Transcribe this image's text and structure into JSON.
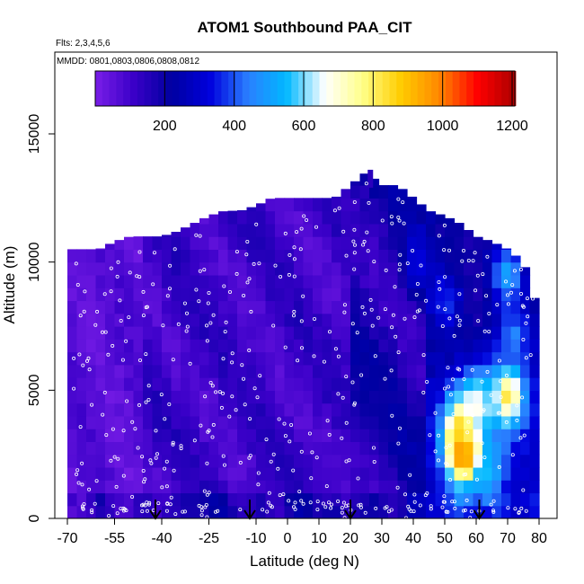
{
  "chart_data": {
    "type": "heatmap",
    "title": "ATOM1 Southbound PAA_CIT",
    "subtitle_flights": "Flts: 2,3,4,5,6",
    "subtitle_dates": "MMDD: 0801,0803,0806,0808,0812",
    "xlabel": "Latitude (deg N)",
    "ylabel": "Altitude (m)",
    "xlim": [
      -70,
      80
    ],
    "ylim": [
      0,
      17500
    ],
    "x_ticks": [
      -70,
      -55,
      -40,
      -25,
      -10,
      0,
      10,
      20,
      30,
      40,
      50,
      60,
      70,
      80
    ],
    "y_ticks": [
      0,
      5000,
      10000,
      15000
    ],
    "colorbar": {
      "range": [
        0,
        1210
      ],
      "ticks": [
        200,
        400,
        600,
        800,
        1000,
        1200
      ],
      "colors": [
        "#7a1ee8",
        "#3a00c8",
        "#0000a0",
        "#0000dd",
        "#2a7fff",
        "#00b8ff",
        "#ffffff",
        "#ffff88",
        "#ffcc00",
        "#ff8800",
        "#ff0000",
        "#aa0000"
      ]
    },
    "column_tops_m": [
      [
        -70,
        10500
      ],
      [
        -65,
        10500
      ],
      [
        -60,
        10500
      ],
      [
        -55,
        10800
      ],
      [
        -50,
        11000
      ],
      [
        -45,
        11000
      ],
      [
        -40,
        11000
      ],
      [
        -35,
        11200
      ],
      [
        -30,
        11500
      ],
      [
        -25,
        11800
      ],
      [
        -20,
        12000
      ],
      [
        -15,
        12000
      ],
      [
        -10,
        12200
      ],
      [
        -5,
        12500
      ],
      [
        0,
        12500
      ],
      [
        5,
        12500
      ],
      [
        10,
        12500
      ],
      [
        15,
        12500
      ],
      [
        20,
        13000
      ],
      [
        25,
        13500
      ],
      [
        30,
        13000
      ],
      [
        35,
        13000
      ],
      [
        40,
        12500
      ],
      [
        45,
        12000
      ],
      [
        50,
        11800
      ],
      [
        55,
        11500
      ],
      [
        60,
        11000
      ],
      [
        65,
        10800
      ],
      [
        70,
        10500
      ],
      [
        75,
        10000
      ],
      [
        80,
        8000
      ]
    ],
    "hotspots": [
      {
        "lat": 56,
        "alt_m": 2500,
        "value": 1000
      },
      {
        "lat": 55,
        "alt_m": 3500,
        "value": 850
      },
      {
        "lat": 60,
        "alt_m": 4500,
        "value": 650
      },
      {
        "lat": 70,
        "alt_m": 4800,
        "value": 800
      },
      {
        "lat": 64,
        "alt_m": 2000,
        "value": 550
      },
      {
        "lat": 70,
        "alt_m": 9500,
        "value": 500
      },
      {
        "lat": 72,
        "alt_m": 7000,
        "value": 450
      },
      {
        "lat": 50,
        "alt_m": 8500,
        "value": 380
      },
      {
        "lat": 42,
        "alt_m": 10000,
        "value": 320
      }
    ],
    "arrows_lat": [
      -42,
      -12,
      20,
      61
    ]
  }
}
